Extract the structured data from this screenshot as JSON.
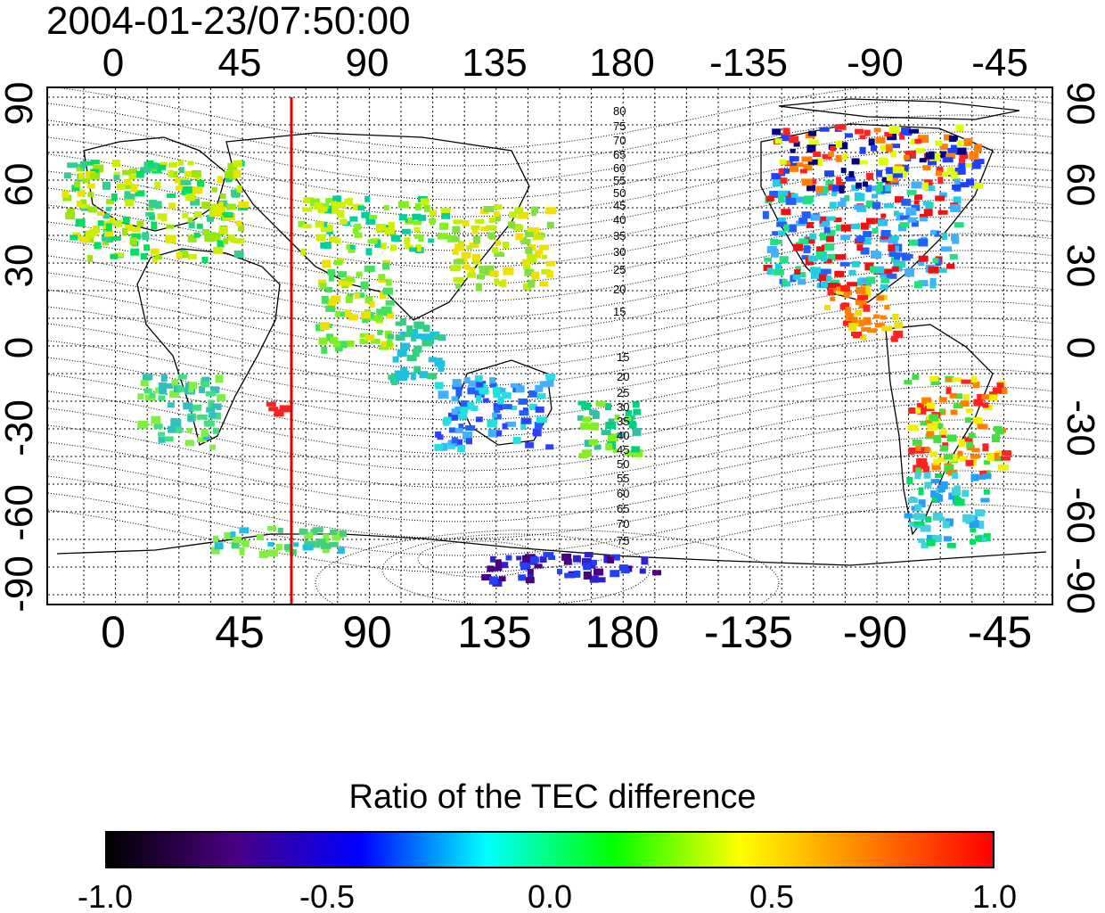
{
  "title": "2004-01-23/07:50:00",
  "x_ticks": [
    "0",
    "45",
    "90",
    "135",
    "180",
    "-135",
    "-90",
    "-45"
  ],
  "y_ticks_left": [
    "90",
    "60",
    "30",
    "0",
    "-30",
    "-60",
    "-90"
  ],
  "y_ticks_right": [
    "90",
    "60",
    "30",
    "0",
    "-30",
    "-60",
    "-90"
  ],
  "contour_labels_north": [
    "80",
    "75",
    "70",
    "65",
    "60",
    "55",
    "50",
    "45",
    "40",
    "35",
    "30",
    "25",
    "20",
    "15"
  ],
  "contour_labels_south": [
    "15",
    "20",
    "25",
    "30",
    "35",
    "40",
    "45",
    "50",
    "55",
    "60",
    "65",
    "70",
    "75"
  ],
  "colorbar": {
    "title": "Ratio of the TEC difference",
    "ticks": [
      "-1.0",
      "-0.5",
      "0.0",
      "0.5",
      "1.0"
    ],
    "colors": [
      "#000000",
      "#4a0080",
      "#0000ff",
      "#00ffff",
      "#00ff00",
      "#ffff00",
      "#ff8000",
      "#ff0000"
    ]
  },
  "marker_line": {
    "longitude": 61,
    "color": "#e00000"
  }
}
